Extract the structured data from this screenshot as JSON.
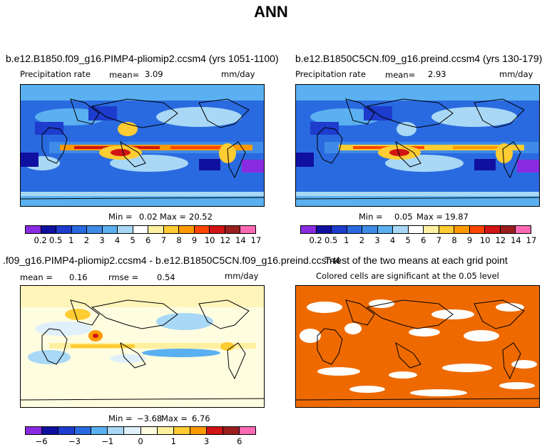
{
  "title": "ANN",
  "panel1": {
    "case": "b.e12.B1850.f09_g16.PIMP4-pliomip2.ccsm4 (yrs 1051-1100)",
    "variable": "Precipitation rate",
    "mean_label": "mean=",
    "mean": "3.09",
    "units": "mm/day",
    "min_label": "Min =",
    "min": "0.02",
    "max_label": "Max =",
    "max": "20.52"
  },
  "panel2": {
    "case": "b.e12.B1850C5CN.f09_g16.preind.ccsm4 (yrs 130-179)",
    "variable": "Precipitation rate",
    "mean_label": "mean=",
    "mean": "2.93",
    "units": "mm/day",
    "min_label": "Min =",
    "min": "0.05",
    "max_label": "Max =",
    "max": "19.87"
  },
  "panel3": {
    "case": ".f09_g16.PIMP4-pliomip2.ccsm4 - b.e12.B1850C5CN.f09_g16.preind.ccsm4",
    "mean_label": "mean =",
    "mean": "0.16",
    "rmse_label": "rmse =",
    "rmse": "0.54",
    "units": "mm/day",
    "min_label": "Min =",
    "min": "−3.68",
    "max_label": "Max =",
    "max": "6.76"
  },
  "panel4": {
    "title": "T-test of the two means at each grid point",
    "subtitle": "Colored cells are significant at the 0.05 level"
  },
  "colorbar_abs": {
    "colors": [
      "#8a2be2",
      "#1010a0",
      "#1e3ccd",
      "#2a6ae0",
      "#3e8ce8",
      "#5ab0f0",
      "#a8d8f5",
      "#ffffff",
      "#fff0a0",
      "#ffcc33",
      "#ff9900",
      "#ff4500",
      "#d21414",
      "#9a1e1e",
      "#ff69b4"
    ],
    "ticks": [
      "0.2",
      "0.5",
      "1",
      "2",
      "3",
      "4",
      "5",
      "6",
      "7",
      "8",
      "9",
      "10",
      "12",
      "14",
      "17"
    ]
  },
  "colorbar_diff": {
    "colors": [
      "#8a2be2",
      "#1010a0",
      "#1e3ccd",
      "#2a6ae0",
      "#5ab0f0",
      "#a8d8f5",
      "#dff0fa",
      "#fffde0",
      "#fff0a0",
      "#ffcc33",
      "#ff9900",
      "#d21414",
      "#9a1e1e",
      "#ff69b4"
    ],
    "ticks": [
      "−6",
      "−3",
      "−1",
      "0",
      "1",
      "3",
      "6"
    ]
  }
}
